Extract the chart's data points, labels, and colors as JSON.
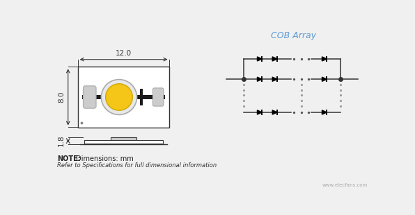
{
  "bg_color": "#f0f0f0",
  "title_cob": "COB Array",
  "title_cob_color": "#5b9bd5",
  "note_bold": "NOTE:",
  "note_text": " Dimensions: mm",
  "note_italic": "Refer to Specifications for full dimensional information",
  "dim_width": "12.0",
  "dim_height": "8.0",
  "dim_thickness": "1.8",
  "led_color": "#f5c518",
  "line_color": "#333333",
  "dot_color_horiz": "#888888",
  "dot_color_vert": "#aaaaaa"
}
